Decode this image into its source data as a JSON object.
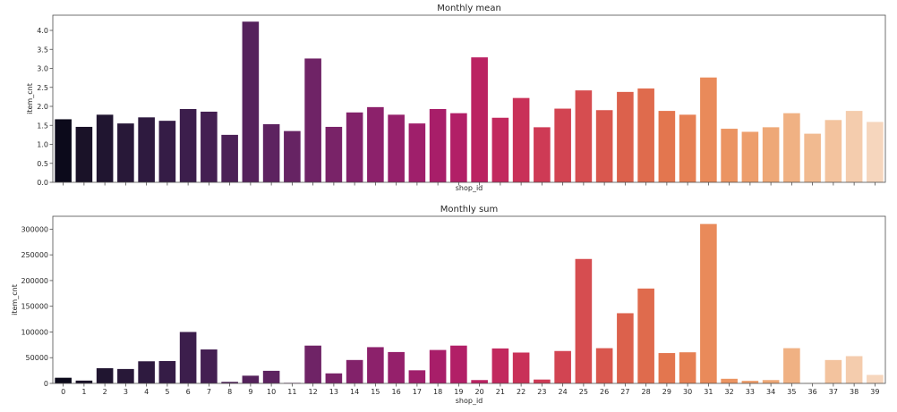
{
  "chart_data": [
    {
      "type": "bar",
      "title": "Monthly mean",
      "xlabel": "shop_id",
      "ylabel": "item_cnt",
      "ylim": [
        0,
        4.4
      ],
      "y_ticks": [
        "0.0",
        "0.5",
        "1.0",
        "1.5",
        "2.0",
        "2.5",
        "3.0",
        "3.5",
        "4.0"
      ],
      "x_tick_labels_visible": false,
      "grid": false,
      "categories": [
        "0",
        "1",
        "2",
        "3",
        "4",
        "5",
        "6",
        "7",
        "8",
        "9",
        "10",
        "11",
        "12",
        "13",
        "14",
        "15",
        "16",
        "17",
        "18",
        "19",
        "20",
        "21",
        "22",
        "23",
        "24",
        "25",
        "26",
        "27",
        "28",
        "29",
        "30",
        "31",
        "32",
        "33",
        "34",
        "35",
        "36",
        "37",
        "38",
        "39"
      ],
      "values": [
        1.66,
        1.46,
        1.78,
        1.55,
        1.71,
        1.62,
        1.93,
        1.86,
        1.25,
        4.23,
        1.53,
        1.35,
        3.26,
        1.46,
        1.84,
        1.98,
        1.78,
        1.55,
        1.93,
        1.82,
        3.29,
        1.7,
        2.22,
        1.45,
        1.94,
        2.42,
        1.9,
        2.38,
        2.47,
        1.88,
        1.78,
        2.76,
        1.41,
        1.33,
        1.45,
        1.82,
        1.28,
        1.64,
        1.88,
        1.59
      ]
    },
    {
      "type": "bar",
      "title": "Monthly sum",
      "xlabel": "shop_id",
      "ylabel": "item_cnt",
      "ylim": [
        0,
        325000
      ],
      "y_ticks": [
        "0",
        "50000",
        "100000",
        "150000",
        "200000",
        "250000",
        "300000"
      ],
      "grid": false,
      "categories": [
        "0",
        "1",
        "2",
        "3",
        "4",
        "5",
        "6",
        "7",
        "8",
        "9",
        "10",
        "11",
        "12",
        "13",
        "14",
        "15",
        "16",
        "17",
        "18",
        "19",
        "20",
        "21",
        "22",
        "23",
        "24",
        "25",
        "26",
        "27",
        "28",
        "29",
        "30",
        "31",
        "32",
        "33",
        "34",
        "35",
        "36",
        "37",
        "38",
        "39"
      ],
      "values": [
        11000,
        5500,
        29500,
        28000,
        43000,
        43500,
        100000,
        66000,
        3000,
        15000,
        24500,
        1000,
        73500,
        19500,
        45500,
        70500,
        61000,
        25500,
        65000,
        73500,
        6500,
        68000,
        60000,
        7500,
        63000,
        242000,
        68500,
        136500,
        184500,
        59000,
        60500,
        310000,
        9000,
        5000,
        6500,
        68500,
        500,
        45500,
        53000,
        16500
      ]
    }
  ],
  "colors": [
    "#0c0a1b",
    "#1a1228",
    "#201530",
    "#281838",
    "#2e1a3f",
    "#351c46",
    "#3c1e4c",
    "#441f52",
    "#4c2157",
    "#55225c",
    "#5d2360",
    "#662363",
    "#6f2366",
    "#792368",
    "#82226a",
    "#8c216b",
    "#95206b",
    "#9f1f6b",
    "#a81e69",
    "#b21f67",
    "#bb2262",
    "#c2295e",
    "#c93158",
    "#ce3a55",
    "#d24452",
    "#d64d50",
    "#d9574e",
    "#dc614c",
    "#df6b4d",
    "#e3764f",
    "#e68054",
    "#e98a5a",
    "#eb9462",
    "#ed9e6c",
    "#eea877",
    "#f0b183",
    "#f1ba90",
    "#f3c39e",
    "#f4ccad",
    "#f6d6bd"
  ]
}
